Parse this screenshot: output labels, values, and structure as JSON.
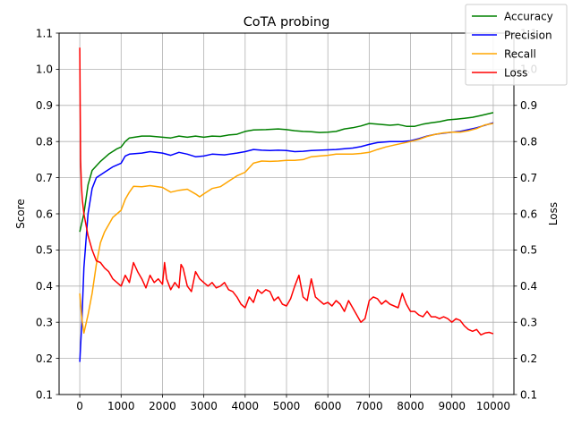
{
  "chart_data": {
    "type": "line",
    "title": "CoTA probing",
    "xlabel": "",
    "ylabel": "Score",
    "ylabel_right": "Loss",
    "xlim": [
      -500,
      10500
    ],
    "ylim": [
      0.1,
      1.1
    ],
    "ylim_right": [
      0.1,
      1.1
    ],
    "xticks": [
      0,
      1000,
      2000,
      3000,
      4000,
      5000,
      6000,
      7000,
      8000,
      9000,
      10000
    ],
    "xtick_labels": [
      "0",
      "1000",
      "2000",
      "3000",
      "4000",
      "5000",
      "6000",
      "7000",
      "8000",
      "9000",
      "10000"
    ],
    "yticks": [
      0.1,
      0.2,
      0.3,
      0.4,
      0.5,
      0.6,
      0.7,
      0.8,
      0.9,
      1.0,
      1.1
    ],
    "ytick_labels": [
      "0.1",
      "0.2",
      "0.3",
      "0.4",
      "0.5",
      "0.6",
      "0.7",
      "0.8",
      "0.9",
      "1.0",
      "1.1"
    ],
    "ytick_labels_right": [
      "0.1",
      "0.2",
      "0.3",
      "0.4",
      "0.5",
      "0.6",
      "0.7",
      "0.8",
      "0.9",
      "1.0",
      "1.1"
    ],
    "grid": true,
    "legend_position": "top-right",
    "series": [
      {
        "name": "Accuracy",
        "color": "#008000",
        "axis": "left",
        "points": [
          [
            0,
            0.55
          ],
          [
            100,
            0.6
          ],
          [
            200,
            0.68
          ],
          [
            300,
            0.72
          ],
          [
            500,
            0.745
          ],
          [
            700,
            0.765
          ],
          [
            900,
            0.78
          ],
          [
            1000,
            0.785
          ],
          [
            1100,
            0.8
          ],
          [
            1200,
            0.81
          ],
          [
            1500,
            0.815
          ],
          [
            1700,
            0.815
          ],
          [
            2000,
            0.812
          ],
          [
            2200,
            0.81
          ],
          [
            2400,
            0.815
          ],
          [
            2600,
            0.812
          ],
          [
            2800,
            0.815
          ],
          [
            3000,
            0.812
          ],
          [
            3200,
            0.815
          ],
          [
            3400,
            0.814
          ],
          [
            3600,
            0.818
          ],
          [
            3800,
            0.82
          ],
          [
            4000,
            0.828
          ],
          [
            4200,
            0.832
          ],
          [
            4500,
            0.833
          ],
          [
            4800,
            0.835
          ],
          [
            5000,
            0.833
          ],
          [
            5200,
            0.83
          ],
          [
            5400,
            0.828
          ],
          [
            5600,
            0.827
          ],
          [
            5800,
            0.825
          ],
          [
            6000,
            0.826
          ],
          [
            6200,
            0.828
          ],
          [
            6400,
            0.835
          ],
          [
            6600,
            0.838
          ],
          [
            6800,
            0.843
          ],
          [
            7000,
            0.85
          ],
          [
            7200,
            0.848
          ],
          [
            7500,
            0.845
          ],
          [
            7700,
            0.847
          ],
          [
            7900,
            0.842
          ],
          [
            8100,
            0.842
          ],
          [
            8300,
            0.848
          ],
          [
            8500,
            0.852
          ],
          [
            8700,
            0.855
          ],
          [
            8900,
            0.86
          ],
          [
            9100,
            0.862
          ],
          [
            9300,
            0.864
          ],
          [
            9500,
            0.867
          ],
          [
            9700,
            0.872
          ],
          [
            10000,
            0.88
          ]
        ]
      },
      {
        "name": "Precision",
        "color": "#0000ff",
        "axis": "left",
        "points": [
          [
            0,
            0.19
          ],
          [
            50,
            0.3
          ],
          [
            100,
            0.45
          ],
          [
            200,
            0.6
          ],
          [
            300,
            0.67
          ],
          [
            400,
            0.7
          ],
          [
            600,
            0.715
          ],
          [
            800,
            0.73
          ],
          [
            1000,
            0.74
          ],
          [
            1100,
            0.76
          ],
          [
            1200,
            0.765
          ],
          [
            1500,
            0.768
          ],
          [
            1700,
            0.772
          ],
          [
            2000,
            0.768
          ],
          [
            2200,
            0.762
          ],
          [
            2400,
            0.77
          ],
          [
            2600,
            0.765
          ],
          [
            2800,
            0.758
          ],
          [
            3000,
            0.76
          ],
          [
            3200,
            0.765
          ],
          [
            3500,
            0.763
          ],
          [
            3800,
            0.768
          ],
          [
            4000,
            0.772
          ],
          [
            4200,
            0.778
          ],
          [
            4400,
            0.776
          ],
          [
            4600,
            0.775
          ],
          [
            4800,
            0.776
          ],
          [
            5000,
            0.775
          ],
          [
            5200,
            0.772
          ],
          [
            5400,
            0.773
          ],
          [
            5600,
            0.775
          ],
          [
            5800,
            0.776
          ],
          [
            6000,
            0.777
          ],
          [
            6200,
            0.778
          ],
          [
            6400,
            0.78
          ],
          [
            6600,
            0.782
          ],
          [
            6800,
            0.786
          ],
          [
            7000,
            0.792
          ],
          [
            7200,
            0.797
          ],
          [
            7500,
            0.8
          ],
          [
            7800,
            0.8
          ],
          [
            8000,
            0.802
          ],
          [
            8200,
            0.808
          ],
          [
            8400,
            0.815
          ],
          [
            8600,
            0.82
          ],
          [
            8800,
            0.823
          ],
          [
            9000,
            0.826
          ],
          [
            9200,
            0.828
          ],
          [
            9400,
            0.833
          ],
          [
            9600,
            0.838
          ],
          [
            9800,
            0.845
          ],
          [
            10000,
            0.852
          ]
        ]
      },
      {
        "name": "Recall",
        "color": "#ffa500",
        "axis": "left",
        "points": [
          [
            0,
            0.38
          ],
          [
            50,
            0.31
          ],
          [
            100,
            0.27
          ],
          [
            200,
            0.32
          ],
          [
            300,
            0.38
          ],
          [
            400,
            0.46
          ],
          [
            500,
            0.52
          ],
          [
            600,
            0.55
          ],
          [
            700,
            0.57
          ],
          [
            800,
            0.59
          ],
          [
            900,
            0.6
          ],
          [
            1000,
            0.61
          ],
          [
            1100,
            0.64
          ],
          [
            1200,
            0.66
          ],
          [
            1300,
            0.676
          ],
          [
            1500,
            0.675
          ],
          [
            1700,
            0.678
          ],
          [
            2000,
            0.673
          ],
          [
            2200,
            0.66
          ],
          [
            2400,
            0.665
          ],
          [
            2600,
            0.668
          ],
          [
            2800,
            0.655
          ],
          [
            2900,
            0.647
          ],
          [
            3000,
            0.655
          ],
          [
            3200,
            0.67
          ],
          [
            3400,
            0.675
          ],
          [
            3600,
            0.69
          ],
          [
            3800,
            0.705
          ],
          [
            4000,
            0.715
          ],
          [
            4200,
            0.74
          ],
          [
            4400,
            0.746
          ],
          [
            4600,
            0.745
          ],
          [
            4800,
            0.746
          ],
          [
            5000,
            0.748
          ],
          [
            5200,
            0.748
          ],
          [
            5400,
            0.75
          ],
          [
            5600,
            0.758
          ],
          [
            5800,
            0.76
          ],
          [
            6000,
            0.762
          ],
          [
            6200,
            0.765
          ],
          [
            6400,
            0.765
          ],
          [
            6600,
            0.765
          ],
          [
            6800,
            0.767
          ],
          [
            7000,
            0.77
          ],
          [
            7200,
            0.778
          ],
          [
            7400,
            0.785
          ],
          [
            7600,
            0.79
          ],
          [
            7800,
            0.795
          ],
          [
            8000,
            0.8
          ],
          [
            8200,
            0.806
          ],
          [
            8400,
            0.814
          ],
          [
            8600,
            0.82
          ],
          [
            8800,
            0.824
          ],
          [
            9000,
            0.826
          ],
          [
            9200,
            0.826
          ],
          [
            9400,
            0.83
          ],
          [
            9600,
            0.836
          ],
          [
            9800,
            0.846
          ],
          [
            10000,
            0.85
          ]
        ]
      },
      {
        "name": "Loss",
        "color": "#ff0000",
        "axis": "right",
        "points": [
          [
            0,
            1.06
          ],
          [
            20,
            0.75
          ],
          [
            40,
            0.68
          ],
          [
            60,
            0.64
          ],
          [
            100,
            0.6
          ],
          [
            150,
            0.57
          ],
          [
            200,
            0.54
          ],
          [
            300,
            0.5
          ],
          [
            400,
            0.47
          ],
          [
            500,
            0.465
          ],
          [
            600,
            0.45
          ],
          [
            700,
            0.44
          ],
          [
            800,
            0.42
          ],
          [
            900,
            0.41
          ],
          [
            1000,
            0.4
          ],
          [
            1100,
            0.43
          ],
          [
            1200,
            0.41
          ],
          [
            1300,
            0.465
          ],
          [
            1400,
            0.44
          ],
          [
            1500,
            0.42
          ],
          [
            1600,
            0.395
          ],
          [
            1700,
            0.43
          ],
          [
            1800,
            0.41
          ],
          [
            1900,
            0.42
          ],
          [
            2000,
            0.405
          ],
          [
            2050,
            0.465
          ],
          [
            2100,
            0.42
          ],
          [
            2200,
            0.39
          ],
          [
            2300,
            0.41
          ],
          [
            2400,
            0.395
          ],
          [
            2450,
            0.46
          ],
          [
            2500,
            0.45
          ],
          [
            2600,
            0.4
          ],
          [
            2700,
            0.385
          ],
          [
            2800,
            0.44
          ],
          [
            2900,
            0.42
          ],
          [
            3000,
            0.41
          ],
          [
            3100,
            0.4
          ],
          [
            3200,
            0.41
          ],
          [
            3300,
            0.395
          ],
          [
            3400,
            0.4
          ],
          [
            3500,
            0.41
          ],
          [
            3600,
            0.39
          ],
          [
            3700,
            0.385
          ],
          [
            3800,
            0.37
          ],
          [
            3900,
            0.35
          ],
          [
            4000,
            0.34
          ],
          [
            4100,
            0.37
          ],
          [
            4200,
            0.355
          ],
          [
            4300,
            0.39
          ],
          [
            4400,
            0.38
          ],
          [
            4500,
            0.39
          ],
          [
            4600,
            0.385
          ],
          [
            4700,
            0.36
          ],
          [
            4800,
            0.37
          ],
          [
            4900,
            0.35
          ],
          [
            5000,
            0.345
          ],
          [
            5100,
            0.365
          ],
          [
            5200,
            0.4
          ],
          [
            5300,
            0.43
          ],
          [
            5400,
            0.37
          ],
          [
            5500,
            0.36
          ],
          [
            5600,
            0.42
          ],
          [
            5700,
            0.37
          ],
          [
            5800,
            0.36
          ],
          [
            5900,
            0.35
          ],
          [
            6000,
            0.355
          ],
          [
            6100,
            0.345
          ],
          [
            6200,
            0.36
          ],
          [
            6300,
            0.35
          ],
          [
            6400,
            0.33
          ],
          [
            6500,
            0.36
          ],
          [
            6600,
            0.34
          ],
          [
            6700,
            0.32
          ],
          [
            6800,
            0.3
          ],
          [
            6900,
            0.31
          ],
          [
            7000,
            0.36
          ],
          [
            7100,
            0.37
          ],
          [
            7200,
            0.365
          ],
          [
            7300,
            0.35
          ],
          [
            7400,
            0.36
          ],
          [
            7500,
            0.35
          ],
          [
            7600,
            0.345
          ],
          [
            7700,
            0.34
          ],
          [
            7800,
            0.38
          ],
          [
            7900,
            0.35
          ],
          [
            8000,
            0.33
          ],
          [
            8100,
            0.33
          ],
          [
            8200,
            0.32
          ],
          [
            8300,
            0.315
          ],
          [
            8400,
            0.33
          ],
          [
            8500,
            0.315
          ],
          [
            8600,
            0.315
          ],
          [
            8700,
            0.31
          ],
          [
            8800,
            0.315
          ],
          [
            8900,
            0.31
          ],
          [
            9000,
            0.3
          ],
          [
            9100,
            0.31
          ],
          [
            9200,
            0.305
          ],
          [
            9300,
            0.29
          ],
          [
            9400,
            0.28
          ],
          [
            9500,
            0.275
          ],
          [
            9600,
            0.28
          ],
          [
            9700,
            0.265
          ],
          [
            9800,
            0.27
          ],
          [
            9900,
            0.272
          ],
          [
            10000,
            0.268
          ]
        ]
      }
    ]
  }
}
